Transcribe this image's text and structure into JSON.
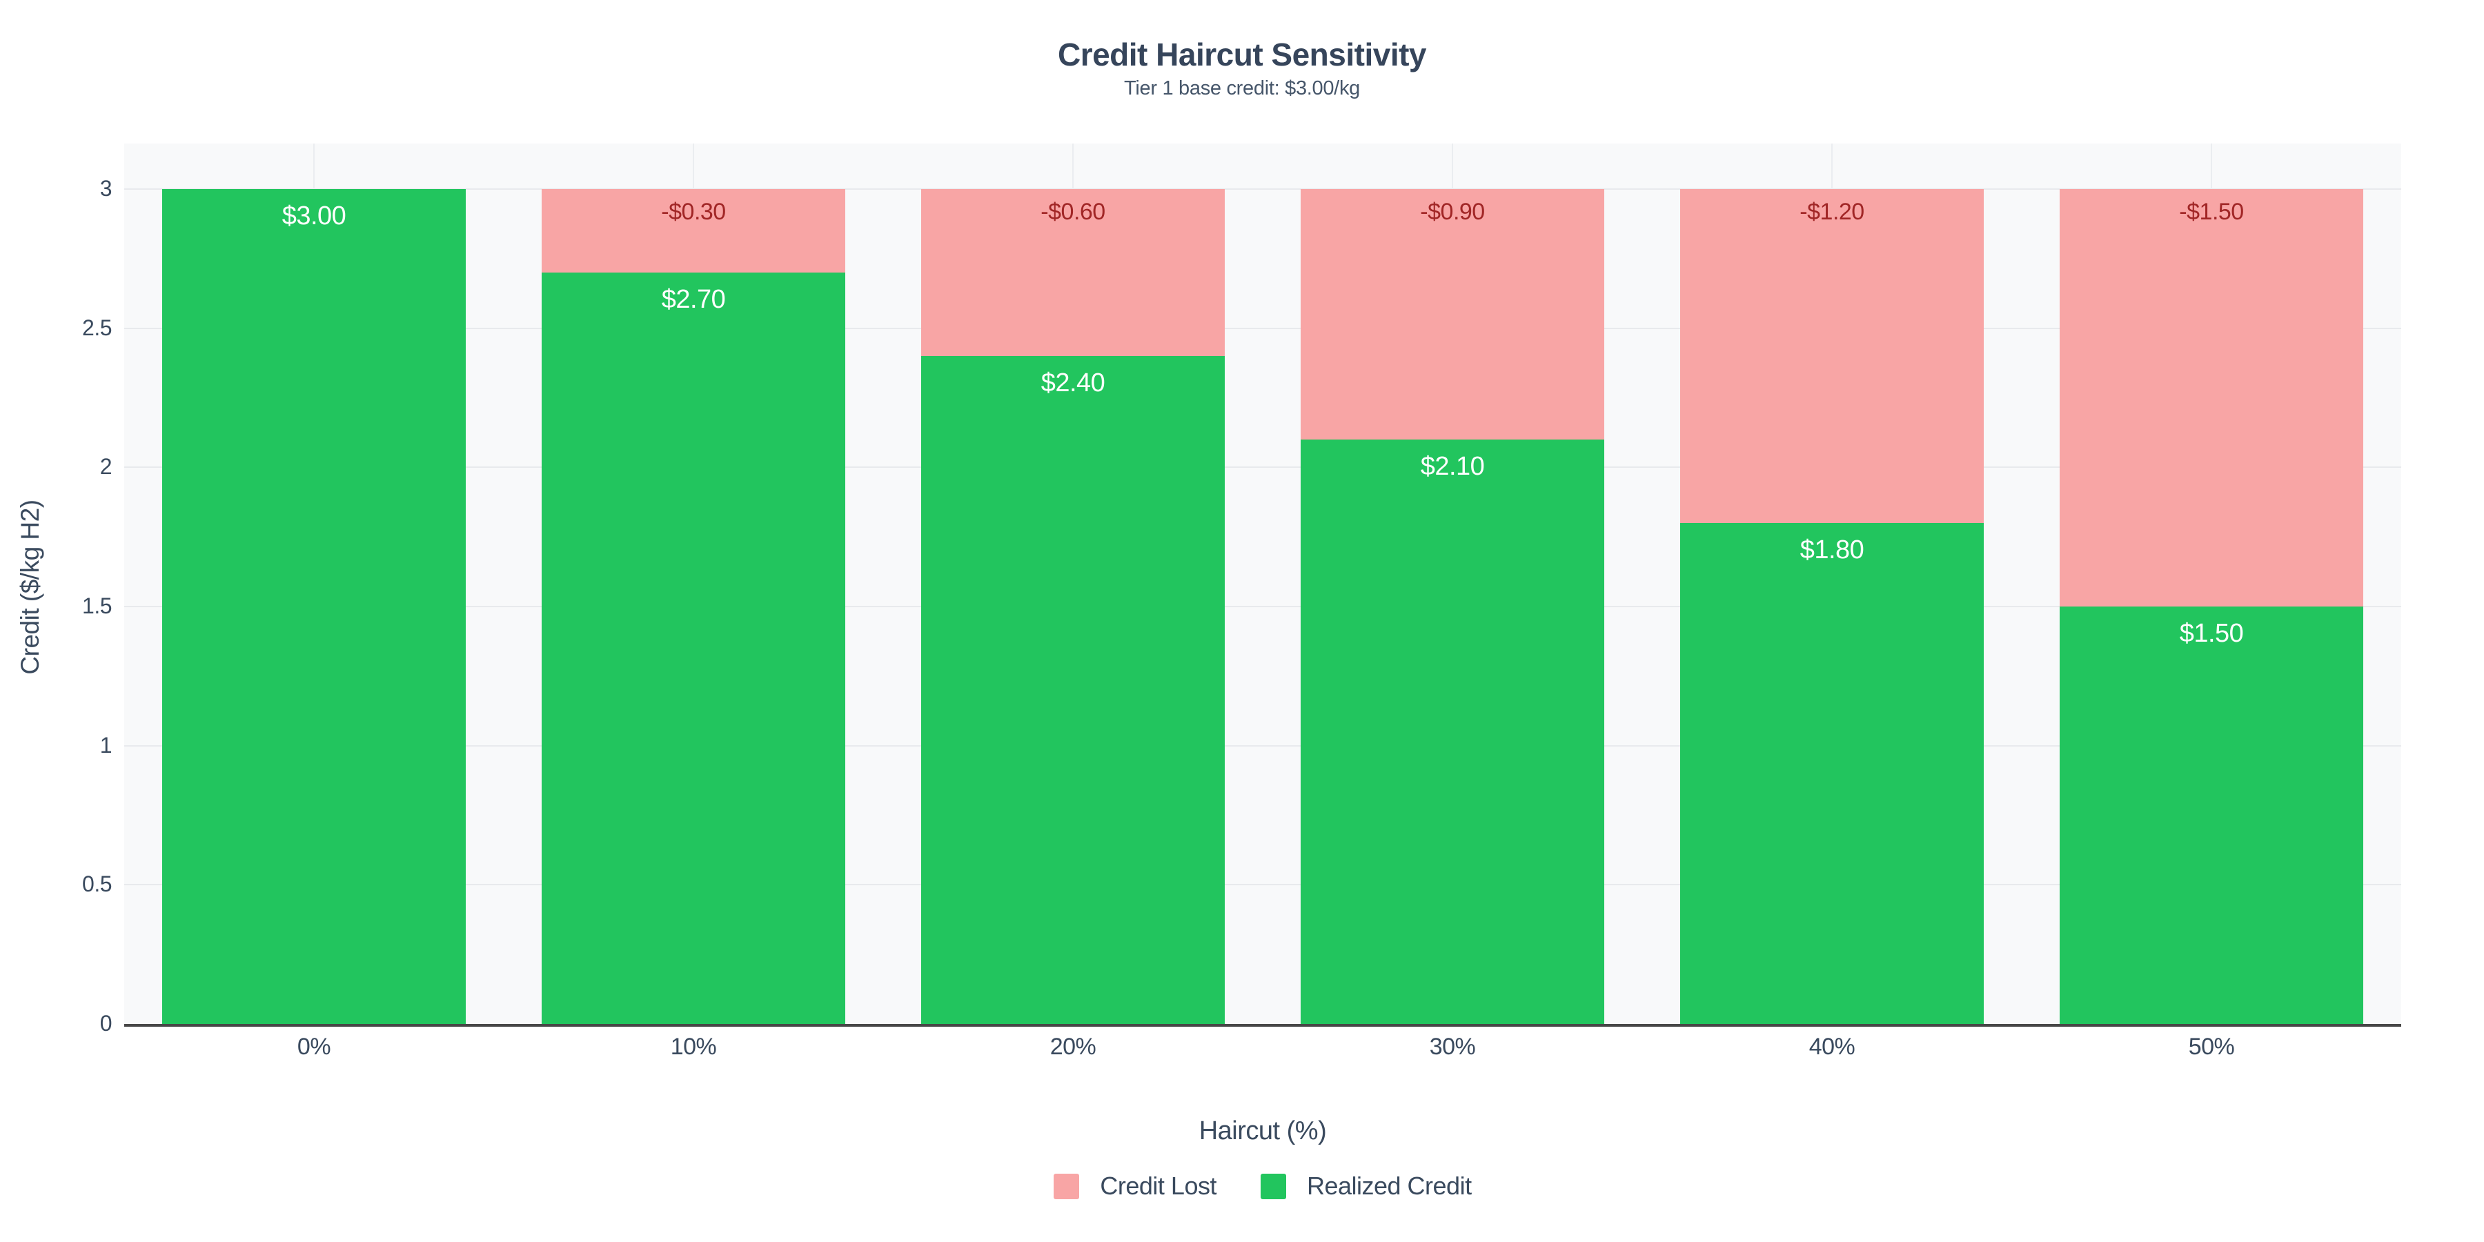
{
  "chart_data": {
    "type": "bar",
    "stacked": true,
    "title": "Credit Haircut Sensitivity",
    "subtitle": "Tier 1 base credit: $3.00/kg",
    "xlabel": "Haircut (%)",
    "ylabel": "Credit ($/kg H2)",
    "categories": [
      "0%",
      "10%",
      "20%",
      "30%",
      "40%",
      "50%"
    ],
    "series": [
      {
        "name": "Realized Credit",
        "color": "#22c55e",
        "label_color": "#ffffff",
        "values": [
          3.0,
          2.7,
          2.4,
          2.1,
          1.8,
          1.5
        ],
        "labels": [
          "$3.00",
          "$2.70",
          "$2.40",
          "$2.10",
          "$1.80",
          "$1.50"
        ]
      },
      {
        "name": "Credit Lost",
        "color": "#f8a5a5",
        "label_color": "#a12626",
        "values": [
          0.0,
          0.3,
          0.6,
          0.9,
          1.2,
          1.5
        ],
        "labels": [
          "",
          "-$0.30",
          "-$0.60",
          "-$0.90",
          "-$1.20",
          "-$1.50"
        ]
      }
    ],
    "ylim": [
      0,
      3
    ],
    "yticks": [
      0,
      0.5,
      1,
      1.5,
      2,
      2.5,
      3
    ],
    "ytick_labels": [
      "0",
      "0.5",
      "1",
      "1.5",
      "2",
      "2.5",
      "3"
    ],
    "grid": true,
    "legend": [
      {
        "label": "Credit Lost",
        "color": "#f8a5a5"
      },
      {
        "label": "Realized Credit",
        "color": "#22c55e"
      }
    ],
    "legend_position": "bottom"
  }
}
